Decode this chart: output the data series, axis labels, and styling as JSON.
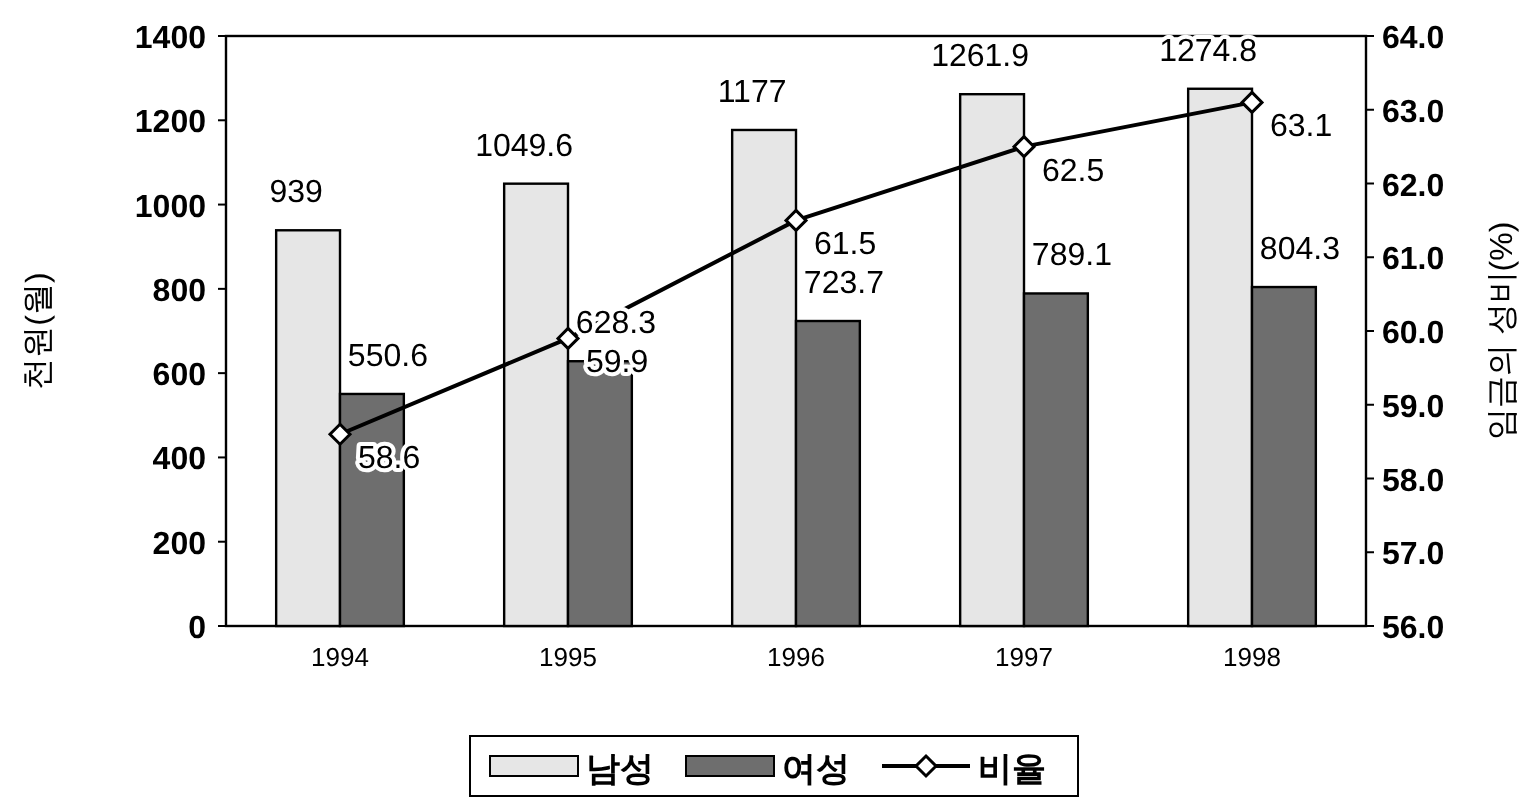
{
  "chart_data": {
    "type": "bar",
    "ylabel": "천원(월)",
    "y2label": "임금의 성비(%)",
    "categories": [
      "1994",
      "1995",
      "1996",
      "1997",
      "1998"
    ],
    "series": [
      {
        "name": "남성",
        "color": "#e6e6e6",
        "values": [
          939,
          1049.6,
          1177,
          1261.9,
          1274.8
        ]
      },
      {
        "name": "여성",
        "color": "#6e6e6e",
        "values": [
          550.6,
          628.3,
          723.7,
          789.1,
          804.3
        ]
      },
      {
        "name": "비율",
        "type": "line",
        "axis": "y2",
        "color": "#000000",
        "marker": "diamond",
        "values": [
          58.6,
          59.9,
          61.5,
          62.5,
          63.1
        ]
      }
    ],
    "ylim": [
      0,
      1400
    ],
    "yticks": [
      0,
      200,
      400,
      600,
      800,
      1000,
      1200,
      1400
    ],
    "y2lim": [
      56,
      64
    ],
    "y2ticks": [
      {
        "value": 56,
        "label": "56.0"
      },
      {
        "value": 57,
        "label": "57.0"
      },
      {
        "value": 58,
        "label": "58.0"
      },
      {
        "value": 59,
        "label": "59.0"
      },
      {
        "value": 60,
        "label": "60.0"
      },
      {
        "value": 61,
        "label": "61.0"
      },
      {
        "value": 62,
        "label": "62.0"
      },
      {
        "value": 63,
        "label": "63.0"
      },
      {
        "value": 64,
        "label": "64.0"
      }
    ],
    "data_labels": true,
    "legend": "bottom",
    "grid": false
  }
}
